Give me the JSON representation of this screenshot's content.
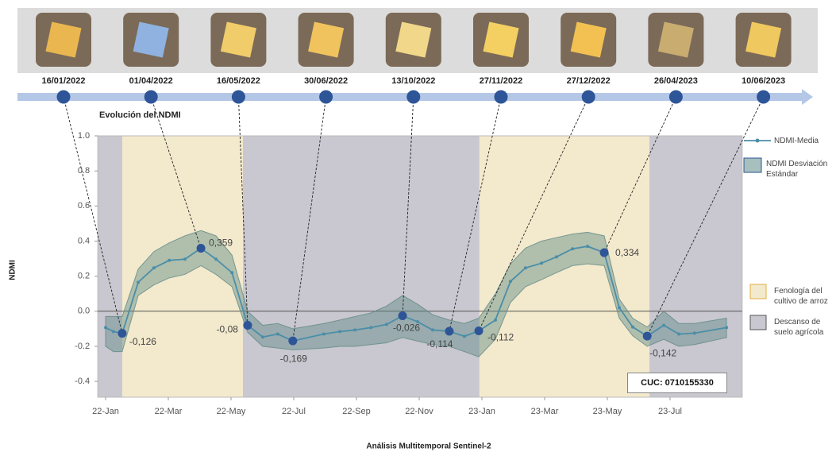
{
  "timeline": {
    "dates": [
      "16/01/2022",
      "01/04/2022",
      "16/05/2022",
      "30/06/2022",
      "13/10/2022",
      "27/11/2022",
      "27/12/2022",
      "26/04/2023",
      "10/06/2023"
    ]
  },
  "chart_data": {
    "type": "line",
    "title": "Evolución del NDMI",
    "y_label": "NDMI",
    "x_label": "Análisis Multitemporal Sentinel-2",
    "annotation": "CUC: 0710155330",
    "xlim": [
      -0.25,
      20.3
    ],
    "ylim": [
      -0.49,
      1.0
    ],
    "xticks": [
      {
        "value": 0,
        "label": "22-Jan"
      },
      {
        "value": 2,
        "label": "22-Mar"
      },
      {
        "value": 4,
        "label": "22-May"
      },
      {
        "value": 6,
        "label": "22-Jul"
      },
      {
        "value": 8,
        "label": "22-Sep"
      },
      {
        "value": 10,
        "label": "22-Nov"
      },
      {
        "value": 12,
        "label": "23-Jan"
      },
      {
        "value": 14,
        "label": "23-Mar"
      },
      {
        "value": 16,
        "label": "23-May"
      },
      {
        "value": 18,
        "label": "23-Jul"
      }
    ],
    "yticks": [
      {
        "value": 1.0,
        "label": "1.0"
      },
      0.8,
      0.6,
      0.4,
      0.2,
      {
        "value": 0,
        "label": "0.0"
      },
      -0.2,
      -0.4
    ],
    "regions": [
      {
        "name": "Fenología del cultivo de arroz",
        "color": "#f3e9cd",
        "spans": [
          [
            0.53,
            4.38
          ],
          [
            11.92,
            17.34
          ]
        ]
      },
      {
        "name": "Descanso de suelo agrícola",
        "color": "#c9c7cf",
        "spans": [
          [
            -0.25,
            0.53
          ],
          [
            4.38,
            11.92
          ],
          [
            17.34,
            20.3
          ]
        ]
      }
    ],
    "x": [
      0,
      0.25,
      0.53,
      1.04,
      1.54,
      2.03,
      2.53,
      3.04,
      3.52,
      4.03,
      4.53,
      5.01,
      5.49,
      5.97,
      6.96,
      7.47,
      7.95,
      8.46,
      8.96,
      9.47,
      9.95,
      10.43,
      10.96,
      11.44,
      11.9,
      12.43,
      12.91,
      13.39,
      13.9,
      14.38,
      14.89,
      15.37,
      15.9,
      16.38,
      16.81,
      17.27,
      17.8,
      18.28,
      18.78,
      19.8
    ],
    "series": [
      {
        "name": "NDMI-Media",
        "color": "#4b8ea8",
        "values": [
          -0.093,
          -0.116,
          -0.126,
          0.165,
          0.247,
          0.29,
          0.297,
          0.359,
          0.297,
          0.22,
          -0.08,
          -0.147,
          -0.13,
          -0.169,
          -0.13,
          -0.116,
          -0.107,
          -0.093,
          -0.075,
          -0.026,
          -0.06,
          -0.107,
          -0.114,
          -0.143,
          -0.112,
          -0.05,
          0.17,
          0.247,
          0.274,
          0.31,
          0.356,
          0.37,
          0.334,
          0.02,
          -0.09,
          -0.142,
          -0.08,
          -0.13,
          -0.125,
          -0.093
        ],
        "value_labels": [
          null,
          null,
          "-0,126",
          null,
          null,
          null,
          null,
          "0,359",
          null,
          null,
          "-0,08",
          null,
          null,
          "-0,169",
          null,
          null,
          null,
          null,
          null,
          "-0,026",
          null,
          null,
          "-0,114",
          null,
          "-0,112",
          null,
          null,
          null,
          null,
          null,
          null,
          null,
          "0,334",
          null,
          null,
          "-0,142",
          null,
          null,
          null,
          null
        ]
      },
      {
        "name": "NDMI Desviación Estándar",
        "color": "#5f8a86",
        "lower": [
          -0.2,
          -0.23,
          -0.23,
          0.09,
          0.15,
          0.19,
          0.21,
          0.26,
          0.21,
          0.14,
          -0.12,
          -0.2,
          -0.21,
          -0.22,
          -0.21,
          -0.2,
          -0.2,
          -0.19,
          -0.18,
          -0.15,
          -0.17,
          -0.19,
          -0.2,
          -0.23,
          -0.26,
          -0.16,
          0.05,
          0.14,
          0.18,
          0.22,
          0.26,
          0.27,
          0.26,
          -0.04,
          -0.14,
          -0.2,
          -0.16,
          -0.2,
          -0.19,
          -0.15
        ],
        "upper": [
          -0.03,
          -0.03,
          -0.03,
          0.24,
          0.34,
          0.39,
          0.43,
          0.46,
          0.43,
          0.32,
          0.0,
          -0.08,
          -0.07,
          -0.1,
          -0.07,
          -0.05,
          -0.03,
          -0.01,
          0.03,
          0.09,
          0.04,
          -0.02,
          -0.05,
          -0.07,
          -0.04,
          0.1,
          0.27,
          0.36,
          0.4,
          0.42,
          0.44,
          0.45,
          0.43,
          0.07,
          -0.04,
          -0.09,
          0.0,
          -0.07,
          -0.07,
          -0.04
        ]
      }
    ]
  }
}
